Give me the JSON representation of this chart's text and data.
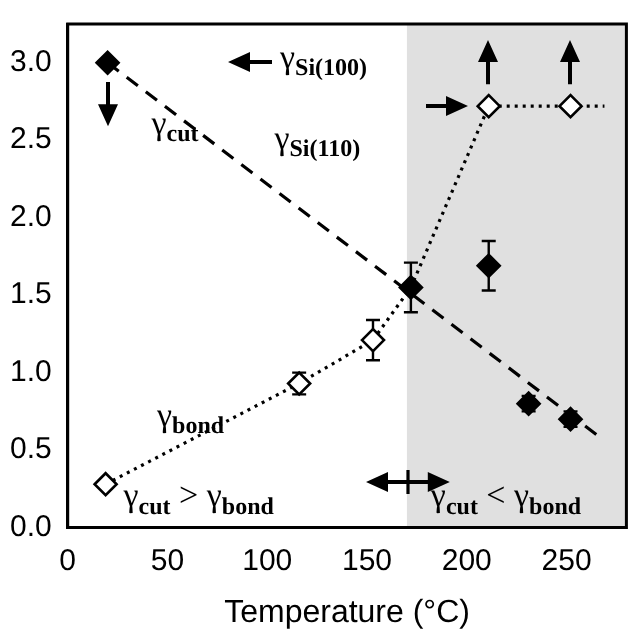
{
  "chart_data": {
    "type": "scatter",
    "xlabel": "Temperature (°C)",
    "xlim": [
      0,
      280
    ],
    "xticks": [
      0,
      50,
      100,
      150,
      200,
      250
    ],
    "ylim": [
      0,
      3.25
    ],
    "yticks": [
      {
        "value": 0,
        "label": "0.0"
      },
      {
        "value": 0.5,
        "label": "0.5"
      },
      {
        "value": 1,
        "label": "1.0"
      },
      {
        "value": 1.5,
        "label": "1.5"
      },
      {
        "value": 2,
        "label": "2.0"
      },
      {
        "value": 2.5,
        "label": "2.5"
      },
      {
        "value": 3,
        "label": "3.0"
      }
    ],
    "grid": false,
    "legend": false,
    "series": [
      {
        "type": "line",
        "color": "#000000",
        "line_style": "dashed",
        "marker": "none",
        "x": [
          20,
          265
        ],
        "values": [
          3.0,
          0.6
        ]
      },
      {
        "type": "line",
        "color": "#000000",
        "line_style": "dotted",
        "marker": "none",
        "x": [
          19,
          116,
          153,
          172,
          211,
          252,
          269
        ],
        "values": [
          0.28,
          0.93,
          1.21,
          1.55,
          2.72,
          2.72,
          2.72
        ]
      },
      {
        "type": "scatter",
        "color": "#000000",
        "marker": "diamond",
        "x": [
          20,
          172,
          211,
          231,
          252
        ],
        "values": [
          3.0,
          1.55,
          1.69,
          0.8,
          0.7
        ],
        "errors": [
          null,
          0.16,
          0.16,
          0.05,
          0.05
        ]
      },
      {
        "type": "scatter",
        "color": "#ffffff",
        "marker": "diamond",
        "x": [
          19,
          116,
          153,
          211,
          252
        ],
        "values": [
          0.28,
          0.93,
          1.21,
          2.72,
          2.72
        ],
        "errors": [
          null,
          0.07,
          0.13,
          null,
          null
        ]
      }
    ],
    "bands": [
      {
        "axis": "x",
        "from": 170,
        "to": 280,
        "color": "#e0e0e0"
      }
    ],
    "annotations": [
      "γ$_{cut}$",
      "γ$_{bond}$",
      "γ$_{Si(100)}$",
      "γ$_{Si(110)}$",
      "γ$_{cut}$ > γ$_{bond}$",
      "γ$_{cut}$ < γ$_{bond}$"
    ]
  }
}
